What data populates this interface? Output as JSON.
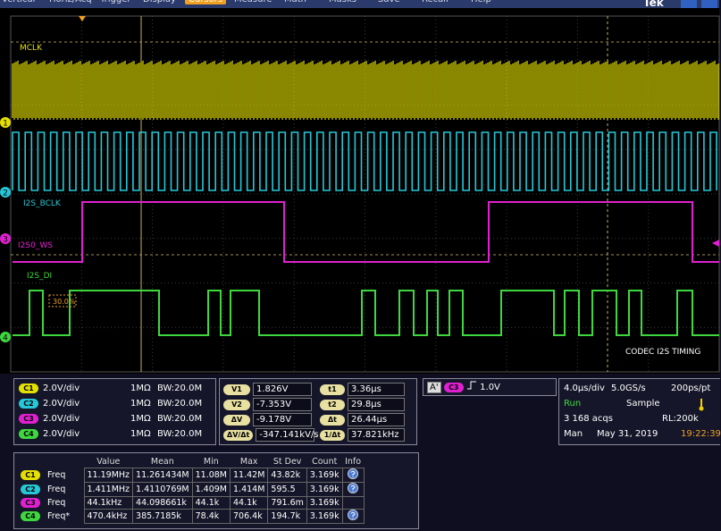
{
  "menu": {
    "items": [
      "Vertical",
      "Horiz/Acq",
      "Trigger",
      "Display",
      "Cursors",
      "Measure",
      "Math",
      "Masks",
      "Save",
      "Recall",
      "Help"
    ],
    "brand": "Tek"
  },
  "screen": {
    "labels": {
      "mclk": "MCLK",
      "bclk": "I2S_BCLK",
      "ws": "I2S0_WS",
      "di": "I2S_DI",
      "note": "CODEC I2S TIMING",
      "cursor_pct": "30.0%"
    },
    "markers": [
      "1",
      "2",
      "3",
      "4"
    ]
  },
  "channels": [
    {
      "badge": "C1",
      "scale": "2.0V/div",
      "coupling": "1MΩ",
      "bw": "BW:20.0M"
    },
    {
      "badge": "C2",
      "scale": "2.0V/div",
      "coupling": "1MΩ",
      "bw": "BW:20.0M"
    },
    {
      "badge": "C3",
      "scale": "2.0V/div",
      "coupling": "1MΩ",
      "bw": "BW:20.0M"
    },
    {
      "badge": "C4",
      "scale": "2.0V/div",
      "coupling": "1MΩ",
      "bw": "BW:20.0M"
    }
  ],
  "cursors": {
    "voltage": [
      {
        "label": "V1",
        "value": "1.826V"
      },
      {
        "label": "V2",
        "value": "-7.353V"
      },
      {
        "label": "ΔV",
        "value": "-9.178V"
      },
      {
        "label": "ΔV/Δt",
        "value": "-347.141kV/s"
      }
    ],
    "time": [
      {
        "label": "t1",
        "value": "3.36µs"
      },
      {
        "label": "t2",
        "value": "29.8µs"
      },
      {
        "label": "Δt",
        "value": "26.44µs"
      },
      {
        "label": "1/Δt",
        "value": "37.821kHz"
      }
    ]
  },
  "trigger": {
    "source": "A'",
    "channel": "C3",
    "level": "1.0V"
  },
  "acquisition": {
    "timebase": "4.0µs/div",
    "rate": "5.0GS/s",
    "resolution": "200ps/pt",
    "state": "Run",
    "mode": "Sample",
    "acqs": "3 168 acqs",
    "record": "RL:200k",
    "trigger_mode": "Man",
    "date": "May 31, 2019",
    "time": "19:22:39"
  },
  "measurements": {
    "headers": [
      "Value",
      "Mean",
      "Min",
      "Max",
      "St Dev",
      "Count",
      "Info"
    ],
    "rows": [
      {
        "channel": "C1",
        "name": "Freq",
        "cells": [
          "11.19MHz",
          "11.261434M",
          "11.08M",
          "11.42M",
          "43.82k",
          "3.169k"
        ]
      },
      {
        "channel": "C2",
        "name": "Freq",
        "cells": [
          "1.411MHz",
          "1.4110769M",
          "1.409M",
          "1.414M",
          "595.5",
          "3.169k"
        ]
      },
      {
        "channel": "C3",
        "name": "Freq",
        "cells": [
          "44.1kHz",
          "44.098661k",
          "44.1k",
          "44.1k",
          "791.6m",
          "3.169k"
        ]
      },
      {
        "channel": "C4",
        "name": "Freq*",
        "cells": [
          "470.4kHz",
          "385.7185k",
          "78.4k",
          "706.4k",
          "194.7k",
          "3.169k"
        ]
      }
    ]
  }
}
